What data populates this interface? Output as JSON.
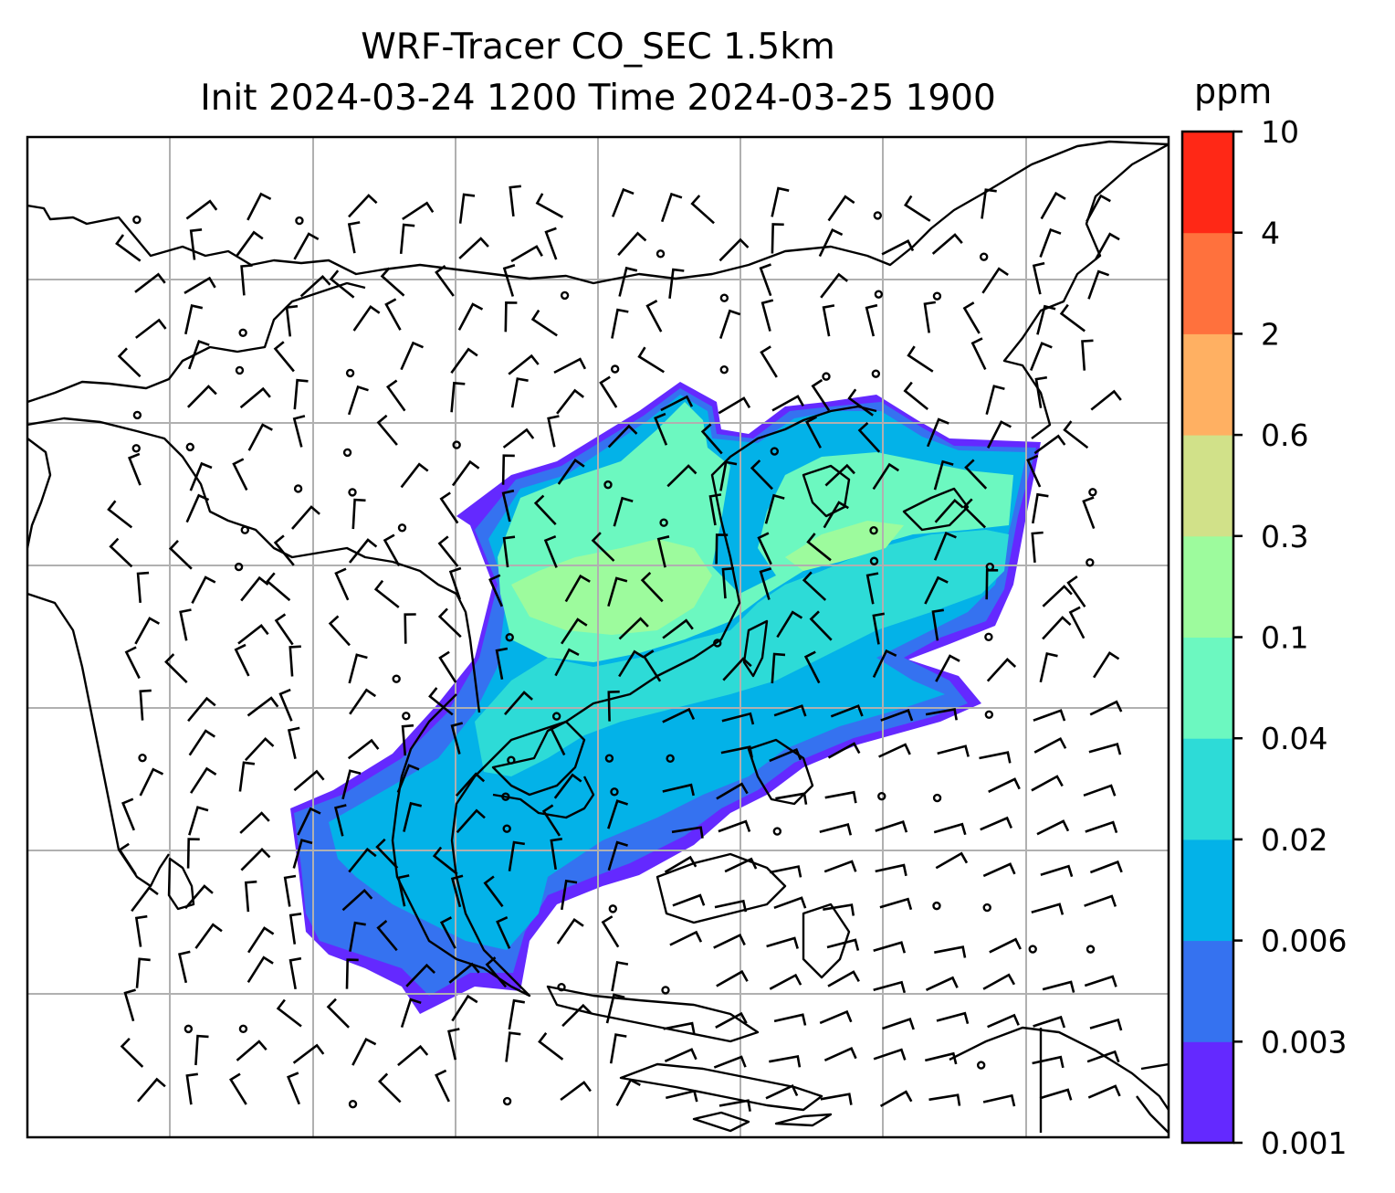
{
  "chart_data": {
    "type": "heatmap",
    "title": "WRF-Tracer CO_SEC 1.5km",
    "subtitle": "Init 2024-03-24 1200 Time 2024-03-25 1900",
    "colorbar": {
      "unit": "ppm",
      "levels": [
        "0.001",
        "0.003",
        "0.006",
        "0.02",
        "0.04",
        "0.1",
        "0.3",
        "0.6",
        "2",
        "4",
        "10"
      ],
      "colors": [
        "#6429ff",
        "#3572f0",
        "#03b2e8",
        "#2ddbd7",
        "#6cf8c0",
        "#9dfb9d",
        "#d1e189",
        "#ffb062",
        "#ff713d",
        "#ff2816"
      ]
    },
    "grid": true,
    "overlays": [
      "coastlines",
      "wind barbs"
    ]
  }
}
